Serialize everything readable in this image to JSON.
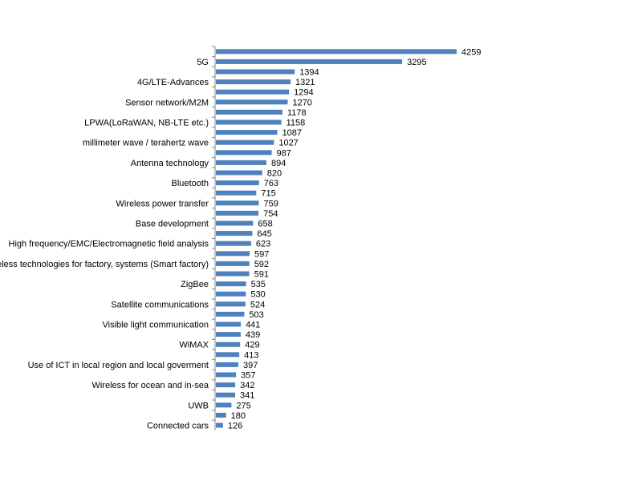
{
  "chart_data": {
    "type": "bar",
    "orientation": "horizontal",
    "bar_color": "#4F81BD",
    "axis_color": "#868686",
    "grid": false,
    "legend": "none",
    "xlim": [
      0,
      4259
    ],
    "categories": [
      "",
      "5G",
      "",
      "4G/LTE-Advances",
      "",
      "Sensor network/M2M",
      "",
      "LPWA(LoRaWAN, NB-LTE etc.)",
      "",
      "millimeter wave / terahertz wave",
      "",
      "Antenna technology",
      "",
      "Bluetooth",
      "",
      "Wireless power transfer",
      "",
      "Base development",
      "",
      "High frequency/EMC/Electromagnetic field analysis",
      "",
      "Wireless technologies for factory, systems (Smart factory)",
      "",
      "ZigBee",
      "",
      "Satellite communications",
      "",
      "Visible light communication",
      "",
      "WiMAX",
      "",
      "Use of ICT in local region and local goverment",
      "",
      "Wireless for ocean and in-sea",
      "",
      "UWB",
      "",
      "Connected cars"
    ],
    "values": [
      4259,
      3295,
      1394,
      1321,
      1294,
      1270,
      1178,
      1158,
      1087,
      1027,
      987,
      894,
      820,
      763,
      715,
      759,
      754,
      658,
      645,
      623,
      597,
      592,
      591,
      535,
      530,
      524,
      503,
      441,
      439,
      429,
      413,
      397,
      357,
      342,
      341,
      275,
      180,
      126
    ]
  }
}
